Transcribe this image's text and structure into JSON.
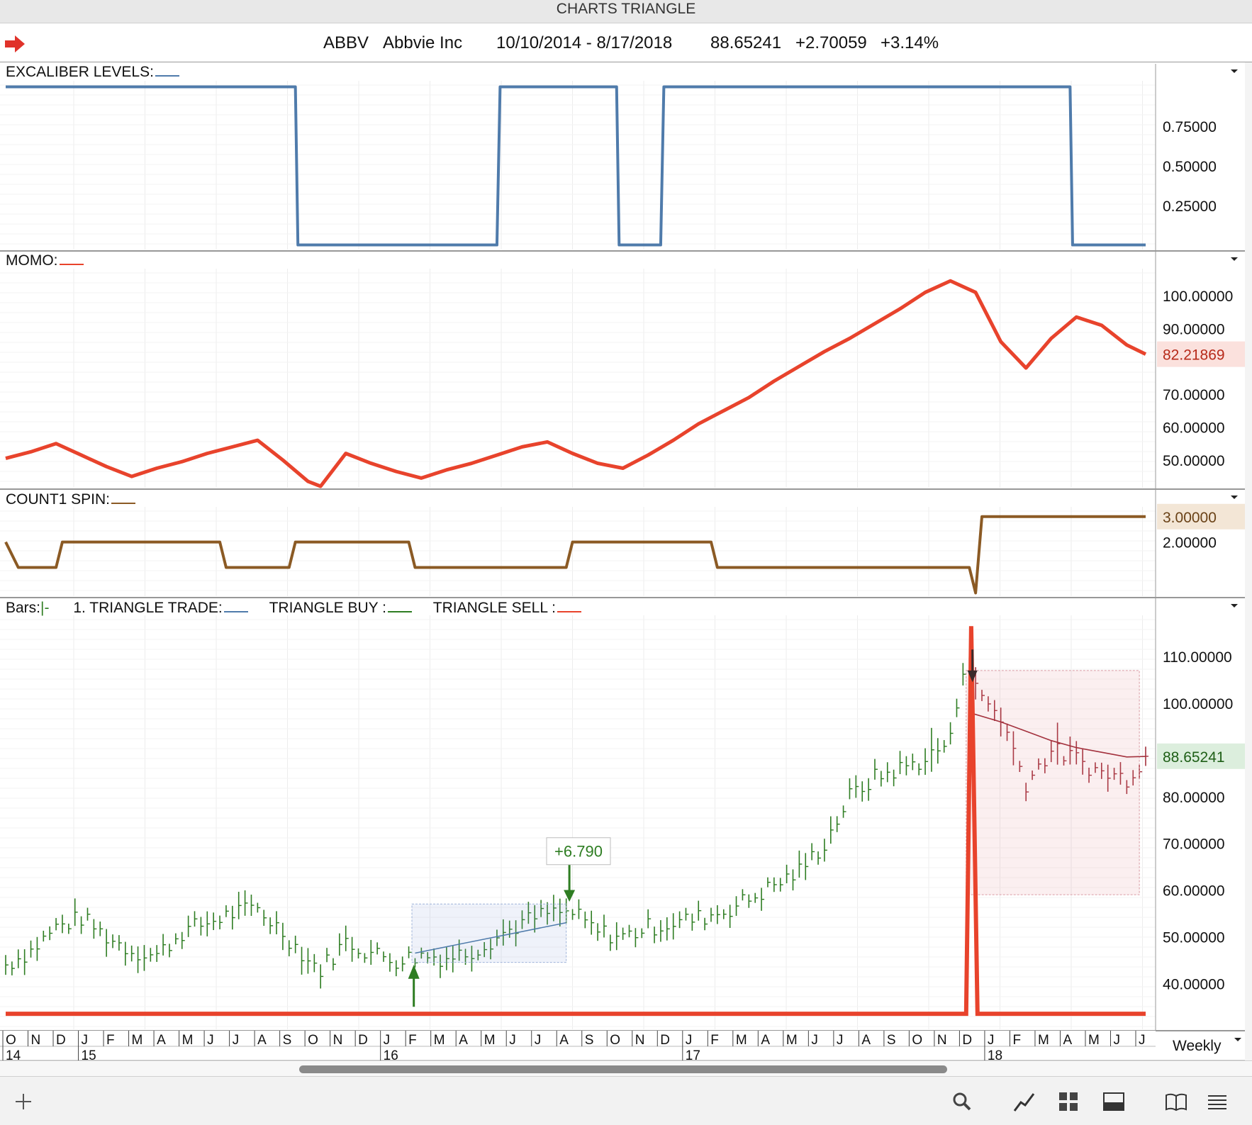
{
  "window": {
    "title": "CHARTS TRIANGLE"
  },
  "info": {
    "symbol": "ABBV",
    "name": "Abbvie Inc",
    "range": "10/10/2014 - 8/17/2018",
    "price": "88.65241",
    "change": "+2.70059",
    "pct": "+3.14%"
  },
  "panels": {
    "excaliber": {
      "label": "EXCALIBER LEVELS:",
      "color": "#4f7bab"
    },
    "momo": {
      "label": "MOMO:",
      "color": "#e8432c"
    },
    "count1": {
      "label": "COUNT1 SPIN:",
      "color": "#8b5a24"
    },
    "price": {
      "label_bars": "Bars:",
      "label_trade": "1. TRIANGLE TRADE:",
      "label_buy": "TRIANGLE BUY :",
      "label_sell": "TRIANGLE SELL :",
      "bar_color": "#2e7d22",
      "sell_color": "#a3313d"
    }
  },
  "timeframe": "Weekly",
  "chart_data": [
    {
      "name": "EXCALIBER LEVELS",
      "type": "line",
      "x": [
        0,
        46,
        46.4,
        78,
        78.5,
        97,
        97.4,
        104,
        104.5,
        169,
        169.4,
        181
      ],
      "y": [
        1,
        1,
        0,
        0,
        1,
        1,
        0,
        0,
        1,
        1,
        0,
        0
      ],
      "yticks": [
        "0.75000",
        "0.50000",
        "0.25000"
      ],
      "ylim": [
        -0.02,
        1.02
      ]
    },
    {
      "name": "MOMO",
      "type": "line",
      "x": [
        0,
        4,
        8,
        12,
        16,
        20,
        24,
        28,
        32,
        36,
        40,
        44,
        48,
        50,
        54,
        58,
        62,
        66,
        70,
        74,
        78,
        82,
        86,
        90,
        94,
        98,
        102,
        106,
        110,
        114,
        118,
        122,
        126,
        130,
        134,
        138,
        142,
        146,
        150,
        154,
        158,
        162,
        166,
        170,
        174,
        178,
        181
      ],
      "y": [
        50.5,
        52.5,
        55,
        51.5,
        48,
        45,
        47.5,
        49.5,
        52,
        54,
        56,
        50,
        43.5,
        42,
        52,
        49,
        46.5,
        44.5,
        47,
        49,
        51.5,
        54,
        55.5,
        52,
        49,
        47.5,
        51.5,
        56,
        61,
        65,
        69,
        74,
        78.5,
        83,
        87,
        91.5,
        96,
        101,
        104.5,
        101,
        86,
        78,
        87,
        93.5,
        91,
        85,
        82.2
      ],
      "yticks": [
        "100.00000",
        "90.00000",
        "70.00000",
        "60.00000",
        "50.00000"
      ],
      "last_value": "82.21869",
      "ylim": [
        42,
        108
      ]
    },
    {
      "name": "COUNT1 SPIN",
      "type": "line",
      "x": [
        0,
        2,
        8,
        9,
        34,
        35,
        45,
        46,
        64,
        65,
        89,
        90,
        112,
        113,
        153,
        154,
        155,
        181
      ],
      "y": [
        2,
        1,
        1,
        2,
        2,
        1,
        1,
        2,
        2,
        1,
        1,
        2,
        2,
        1,
        1,
        0,
        3,
        3
      ],
      "yticks": [
        "2.00000"
      ],
      "last_value": "3.00000",
      "ylim": [
        -0.1,
        3.3
      ]
    },
    {
      "name": "PRICE",
      "type": "bar",
      "x": [
        0,
        4,
        8,
        12,
        16,
        20,
        24,
        28,
        32,
        36,
        40,
        44,
        48,
        50,
        54,
        58,
        62,
        66,
        70,
        74,
        78,
        82,
        86,
        90,
        94,
        98,
        102,
        106,
        110,
        114,
        118,
        122,
        126,
        130,
        134,
        138,
        142,
        146,
        150,
        152,
        154,
        158,
        162,
        166,
        170,
        174,
        178,
        181
      ],
      "y": [
        44,
        47,
        52,
        54,
        50,
        47,
        46,
        51,
        53,
        55,
        56,
        51,
        45,
        43,
        49,
        46.5,
        45,
        46,
        45.5,
        47,
        50,
        53,
        55,
        55,
        51,
        50,
        52,
        53,
        54,
        55.5,
        58,
        61,
        64,
        70,
        80,
        84,
        86,
        88,
        92,
        108,
        103,
        97,
        83,
        90,
        88,
        85,
        84,
        88.65
      ],
      "yticks": [
        "110.00000",
        "100.00000",
        "80.00000",
        "70.00000",
        "60.00000",
        "50.00000",
        "40.00000"
      ],
      "last_value": "88.65241",
      "annotation": "+6.790",
      "ylim": [
        32,
        117
      ]
    }
  ],
  "xaxis": {
    "months": [
      "O",
      "N",
      "D",
      "J",
      "F",
      "M",
      "A",
      "M",
      "J",
      "J",
      "A",
      "S",
      "O",
      "N",
      "D",
      "J",
      "F",
      "M",
      "A",
      "M",
      "J",
      "J",
      "A",
      "S",
      "O",
      "N",
      "D",
      "J",
      "F",
      "M",
      "A",
      "M",
      "J",
      "J",
      "A",
      "S",
      "O",
      "N",
      "D",
      "J",
      "F",
      "M",
      "A",
      "M",
      "J",
      "J"
    ],
    "years": [
      "14",
      "15",
      "16",
      "17",
      "18"
    ]
  }
}
